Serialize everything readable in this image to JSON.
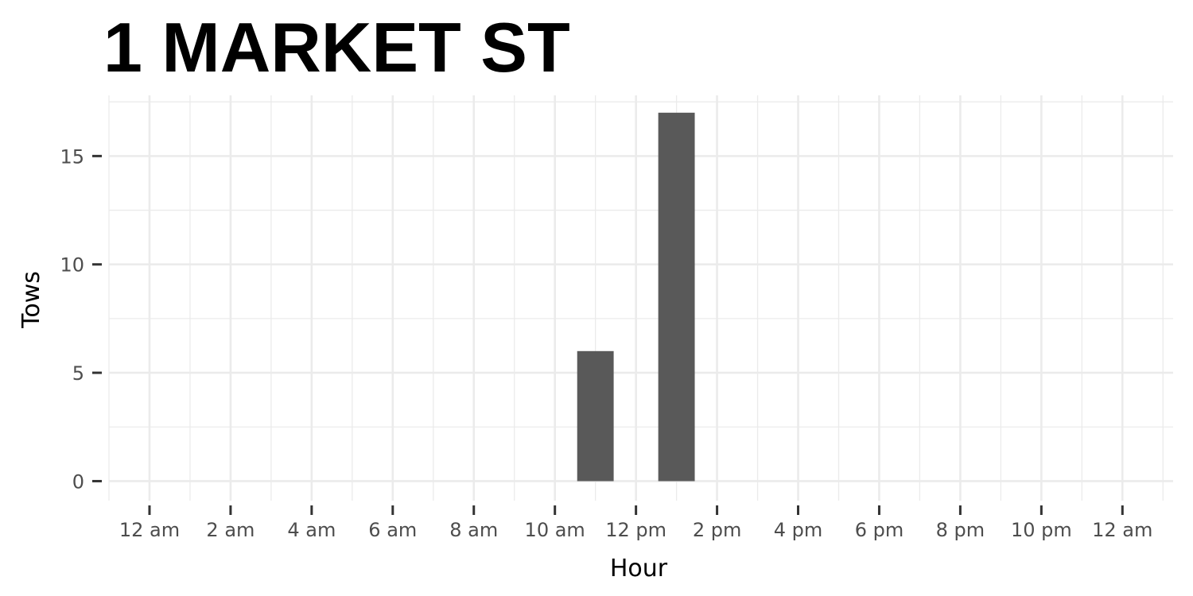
{
  "chart_data": {
    "type": "bar",
    "title": "1 MARKET ST",
    "xlabel": "Hour",
    "ylabel": "Tows",
    "x_tick_labels": [
      "12 am",
      "2 am",
      "4 am",
      "6 am",
      "8 am",
      "10 am",
      "12 pm",
      "2 pm",
      "4 pm",
      "6 pm",
      "8 pm",
      "10 pm",
      "12 am"
    ],
    "x_tick_hours": [
      0,
      2,
      4,
      6,
      8,
      10,
      12,
      14,
      16,
      18,
      20,
      22,
      24
    ],
    "x_range_hours": [
      -1,
      25.25
    ],
    "y_ticks": [
      0,
      5,
      10,
      15
    ],
    "ylim": [
      -0.9,
      17.8
    ],
    "bars": [
      {
        "hour": 11,
        "value": 6
      },
      {
        "hour": 13,
        "value": 17
      }
    ],
    "bar_color": "#595959",
    "grid": true,
    "legend": "none"
  }
}
